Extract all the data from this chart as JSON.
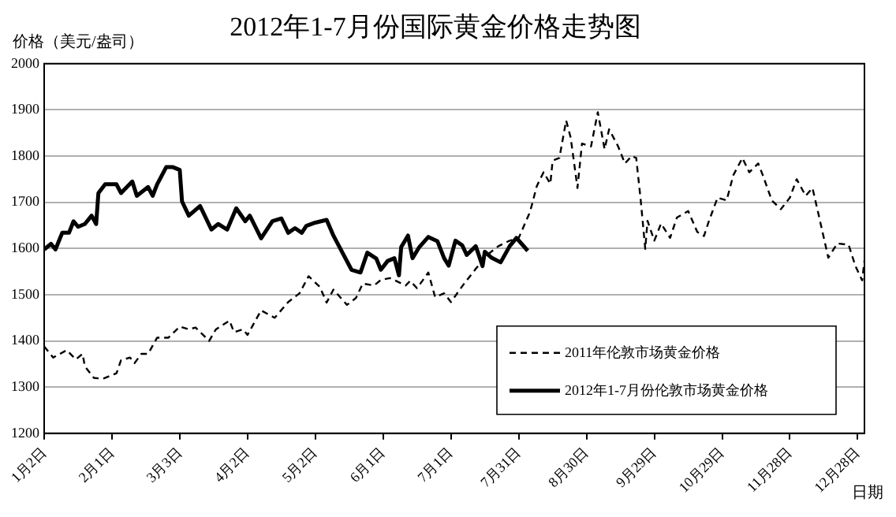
{
  "chart_data": {
    "type": "line",
    "title": "2012年1-7月份国际黄金价格走势图",
    "ylabel": "价格（美元/盎司）",
    "xlabel": "日期",
    "xlim": [
      "--01-02",
      "--12-31"
    ],
    "xticks": [
      {
        "value": "--01-02",
        "label": "1月2日"
      },
      {
        "value": "--02-01",
        "label": "2月1日"
      },
      {
        "value": "--03-03",
        "label": "3月3日"
      },
      {
        "value": "--04-02",
        "label": "4月2日"
      },
      {
        "value": "--05-02",
        "label": "5月2日"
      },
      {
        "value": "--06-01",
        "label": "6月1日"
      },
      {
        "value": "--07-01",
        "label": "7月1日"
      },
      {
        "value": "--07-31",
        "label": "7月31日"
      },
      {
        "value": "--08-30",
        "label": "8月30日"
      },
      {
        "value": "--09-29",
        "label": "9月29日"
      },
      {
        "value": "--10-29",
        "label": "10月29日"
      },
      {
        "value": "--11-28",
        "label": "11月28日"
      },
      {
        "value": "--12-28",
        "label": "12月28日"
      }
    ],
    "ylim": [
      1200,
      2000
    ],
    "yticks": [
      1200,
      1300,
      1400,
      1500,
      1600,
      1700,
      1800,
      1900,
      2000
    ],
    "grid": "y",
    "legend": "bottom right",
    "marker": "none",
    "series": [
      {
        "name": "2011年伦敦市场黄金价格",
        "color": "#000000",
        "line_style": "dashed",
        "x": [
          "--01-02",
          "--01-06",
          "--01-12",
          "--01-16",
          "--01-19",
          "--01-20",
          "--01-24",
          "--01-28",
          "--02-03",
          "--02-05",
          "--02-09",
          "--02-11",
          "--02-14",
          "--02-17",
          "--02-21",
          "--02-26",
          "--03-03",
          "--03-07",
          "--03-10",
          "--03-16",
          "--03-19",
          "--03-25",
          "--03-27",
          "--03-31",
          "--04-02",
          "--04-08",
          "--04-14",
          "--04-20",
          "--04-25",
          "--04-29",
          "--05-04",
          "--05-07",
          "--05-10",
          "--05-16",
          "--05-20",
          "--05-23",
          "--05-28",
          "--05-31",
          "--06-04",
          "--06-11",
          "--06-13",
          "--06-16",
          "--06-21",
          "--06-24",
          "--06-28",
          "--07-01",
          "--07-07",
          "--07-12",
          "--07-17",
          "--07-22",
          "--07-27",
          "--07-31",
          "--08-05",
          "--08-08",
          "--08-11",
          "--08-14",
          "--08-15",
          "--08-18",
          "--08-21",
          "--08-23",
          "--08-26",
          "--08-28",
          "--09-01",
          "--09-04",
          "--09-07",
          "--09-09",
          "--09-13",
          "--09-16",
          "--09-19",
          "--09-21",
          "--09-23",
          "--09-25",
          "--09-26",
          "--09-29",
          "--10-02",
          "--10-06",
          "--10-09",
          "--10-14",
          "--10-18",
          "--10-21",
          "--10-23",
          "--10-27",
          "--10-31",
          "--11-03",
          "--11-07",
          "--11-10",
          "--11-14",
          "--11-16",
          "--11-20",
          "--11-24",
          "--11-28",
          "--12-01",
          "--12-05",
          "--12-08",
          "--12-11",
          "--12-15",
          "--12-19",
          "--12-24",
          "--12-27",
          "--12-30",
          "--12-31"
        ],
        "values": [
          1388,
          1364,
          1380,
          1360,
          1372,
          1345,
          1320,
          1318,
          1330,
          1358,
          1364,
          1352,
          1372,
          1372,
          1407,
          1407,
          1431,
          1425,
          1429,
          1400,
          1425,
          1444,
          1419,
          1425,
          1413,
          1466,
          1450,
          1484,
          1503,
          1540,
          1517,
          1483,
          1511,
          1478,
          1493,
          1524,
          1520,
          1532,
          1536,
          1520,
          1530,
          1514,
          1548,
          1495,
          1503,
          1484,
          1525,
          1556,
          1586,
          1605,
          1617,
          1623,
          1679,
          1735,
          1765,
          1740,
          1790,
          1796,
          1877,
          1840,
          1731,
          1827,
          1821,
          1895,
          1815,
          1858,
          1821,
          1784,
          1800,
          1796,
          1704,
          1599,
          1660,
          1617,
          1654,
          1623,
          1667,
          1681,
          1636,
          1627,
          1657,
          1710,
          1704,
          1759,
          1796,
          1765,
          1784,
          1759,
          1704,
          1685,
          1710,
          1750,
          1714,
          1731,
          1667,
          1580,
          1611,
          1608,
          1562,
          1531,
          1574
        ]
      },
      {
        "name": "2012年1-7月份伦敦市场黄金价格",
        "color": "#000000",
        "line_style": "solid",
        "x": [
          "--01-02",
          "--01-05",
          "--01-07",
          "--01-10",
          "--01-13",
          "--01-15",
          "--01-17",
          "--01-20",
          "--01-23",
          "--01-25",
          "--01-26",
          "--01-29",
          "--02-03",
          "--02-05",
          "--02-10",
          "--02-12",
          "--02-17",
          "--02-19",
          "--02-21",
          "--02-25",
          "--02-28",
          "--03-03",
          "--03-04",
          "--03-07",
          "--03-12",
          "--03-17",
          "--03-20",
          "--03-24",
          "--03-28",
          "--04-01",
          "--04-03",
          "--04-08",
          "--04-13",
          "--04-17",
          "--04-20",
          "--04-23",
          "--04-26",
          "--04-28",
          "--05-02",
          "--05-07",
          "--05-10",
          "--05-14",
          "--05-18",
          "--05-22",
          "--05-25",
          "--05-29",
          "--05-31",
          "--06-03",
          "--06-06",
          "--06-08",
          "--06-09",
          "--06-12",
          "--06-14",
          "--06-17",
          "--06-21",
          "--06-25",
          "--06-28",
          "--06-30",
          "--07-03",
          "--07-06",
          "--07-08",
          "--07-12",
          "--07-15",
          "--07-16",
          "--07-19",
          "--07-23",
          "--07-27",
          "--07-30",
          "--08-04"
        ],
        "values": [
          1598,
          1610,
          1598,
          1634,
          1634,
          1659,
          1647,
          1653,
          1671,
          1653,
          1720,
          1739,
          1739,
          1720,
          1745,
          1714,
          1733,
          1714,
          1739,
          1776,
          1776,
          1770,
          1702,
          1671,
          1692,
          1641,
          1653,
          1641,
          1687,
          1659,
          1671,
          1622,
          1659,
          1665,
          1634,
          1644,
          1634,
          1649,
          1656,
          1662,
          1628,
          1591,
          1554,
          1548,
          1591,
          1578,
          1554,
          1573,
          1579,
          1542,
          1603,
          1628,
          1579,
          1603,
          1625,
          1616,
          1579,
          1563,
          1617,
          1607,
          1586,
          1605,
          1562,
          1593,
          1580,
          1570,
          1605,
          1623,
          1595
        ]
      }
    ]
  }
}
